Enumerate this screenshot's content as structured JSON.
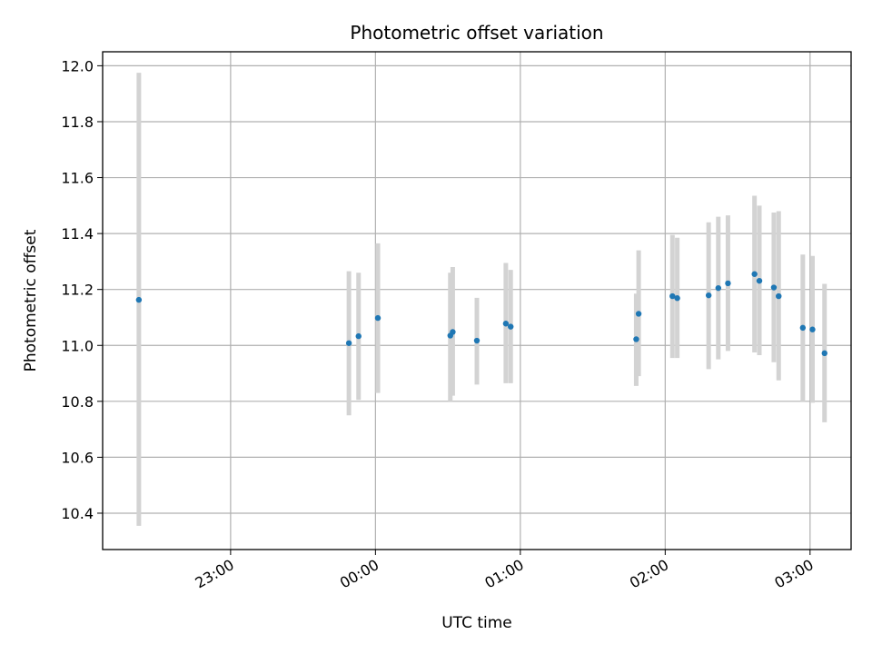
{
  "chart_data": {
    "type": "scatter",
    "title": "Photometric offset variation",
    "xlabel": "UTC time",
    "ylabel": "Photometric offset",
    "x_tick_labels": [
      "23:00",
      "00:00",
      "01:00",
      "02:00",
      "03:00"
    ],
    "x_tick_minutes": [
      -60,
      0,
      60,
      120,
      180
    ],
    "y_ticks": [
      10.4,
      10.6,
      10.8,
      11.0,
      11.2,
      11.4,
      11.6,
      11.8,
      12.0
    ],
    "y_tick_labels": [
      "10.4",
      "10.6",
      "10.8",
      "11.0",
      "11.2",
      "11.4",
      "11.6",
      "11.8",
      "12.0"
    ],
    "xlim_minutes": [
      -113,
      197
    ],
    "ylim": [
      10.27,
      12.05
    ],
    "grid": true,
    "points": [
      {
        "t": -98,
        "y": 11.163,
        "lo": 10.355,
        "hi": 11.975
      },
      {
        "t": -11,
        "y": 11.008,
        "lo": 10.75,
        "hi": 11.265
      },
      {
        "t": -7,
        "y": 11.033,
        "lo": 10.805,
        "hi": 11.26
      },
      {
        "t": 1,
        "y": 11.098,
        "lo": 10.83,
        "hi": 11.365
      },
      {
        "t": 31,
        "y": 11.035,
        "lo": 10.8,
        "hi": 11.26
      },
      {
        "t": 32,
        "y": 11.048,
        "lo": 10.82,
        "hi": 11.28
      },
      {
        "t": 42,
        "y": 11.017,
        "lo": 10.86,
        "hi": 11.17
      },
      {
        "t": 54,
        "y": 11.078,
        "lo": 10.865,
        "hi": 11.295
      },
      {
        "t": 56,
        "y": 11.067,
        "lo": 10.865,
        "hi": 11.27
      },
      {
        "t": 108,
        "y": 11.022,
        "lo": 10.855,
        "hi": 11.185
      },
      {
        "t": 109,
        "y": 11.113,
        "lo": 10.89,
        "hi": 11.34
      },
      {
        "t": 123,
        "y": 11.176,
        "lo": 10.955,
        "hi": 11.395
      },
      {
        "t": 125,
        "y": 11.169,
        "lo": 10.955,
        "hi": 11.385
      },
      {
        "t": 138,
        "y": 11.179,
        "lo": 10.915,
        "hi": 11.44
      },
      {
        "t": 142,
        "y": 11.205,
        "lo": 10.95,
        "hi": 11.46
      },
      {
        "t": 146,
        "y": 11.222,
        "lo": 10.98,
        "hi": 11.465
      },
      {
        "t": 157,
        "y": 11.255,
        "lo": 10.975,
        "hi": 11.535
      },
      {
        "t": 159,
        "y": 11.231,
        "lo": 10.965,
        "hi": 11.5
      },
      {
        "t": 165,
        "y": 11.207,
        "lo": 10.94,
        "hi": 11.475
      },
      {
        "t": 167,
        "y": 11.176,
        "lo": 10.875,
        "hi": 11.48
      },
      {
        "t": 177,
        "y": 11.063,
        "lo": 10.8,
        "hi": 11.325
      },
      {
        "t": 181,
        "y": 11.057,
        "lo": 10.795,
        "hi": 11.32
      },
      {
        "t": 186,
        "y": 10.972,
        "lo": 10.725,
        "hi": 11.22
      }
    ]
  }
}
